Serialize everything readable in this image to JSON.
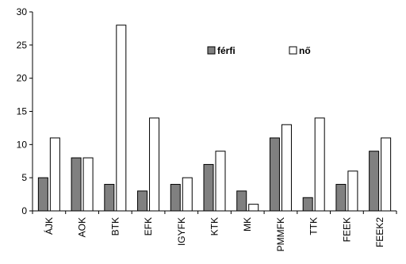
{
  "chart_data": {
    "type": "bar",
    "categories": [
      "ÁJK",
      "AOK",
      "BTK",
      "EFK",
      "IGYFK",
      "KTK",
      "MK",
      "PMMFK",
      "TTK",
      "FEEK",
      "FEEK2"
    ],
    "series": [
      {
        "name": "férfi",
        "values": [
          5,
          8,
          4,
          3,
          4,
          7,
          3,
          11,
          2,
          4,
          9
        ],
        "color": "#808080"
      },
      {
        "name": "nő",
        "values": [
          11,
          8,
          28,
          14,
          5,
          9,
          1,
          13,
          14,
          6,
          11
        ],
        "color": "#ffffff"
      }
    ],
    "ylim": [
      0,
      30
    ],
    "yticks": [
      "0",
      "5",
      "10",
      "15",
      "20",
      "25",
      "30"
    ],
    "grid": false,
    "legend_position": "top-right"
  }
}
